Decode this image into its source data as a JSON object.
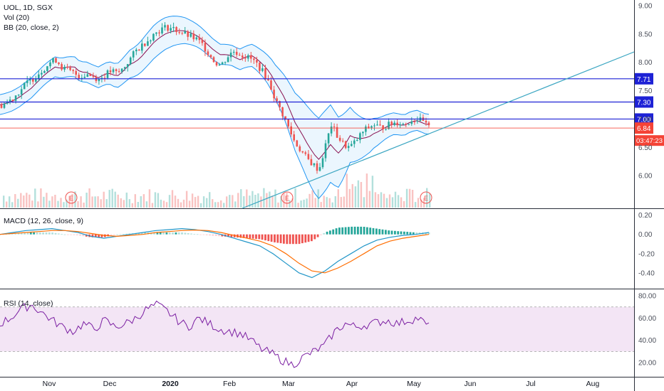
{
  "legend": {
    "symbol": "UOL, 1D, SGX",
    "volume": "Vol (20)",
    "bb": "BB (20, close, 2)",
    "macd": "MACD (12, 26, close, 9)",
    "rsi": "RSI (14, close)"
  },
  "colors": {
    "up": "#26a69a",
    "down": "#ef5350",
    "bb_band": "#2196f3",
    "bb_basis": "#880e4f",
    "bb_fill": "#e3f2fd",
    "hline": "#1e22d6",
    "price_line": "#f44336",
    "trend": "#3ba6c2",
    "macd_line": "#2196c8",
    "signal_line": "#ff6d00",
    "rsi_line": "#7b1fa2",
    "rsi_band": "#f3e5f5"
  },
  "chart_data": [
    {
      "type": "candlestick",
      "ylim": [
        5.55,
        9.05
      ],
      "yticks": [
        "9.00",
        "8.50",
        "8.00",
        "7.50",
        "7.00",
        "6.50",
        "6.00"
      ],
      "xlabels": [
        "Nov",
        "Dec",
        "2020",
        "Feb",
        "Mar",
        "Apr",
        "May",
        "Jun",
        "Jul",
        "Aug"
      ],
      "close_path": [
        7.25,
        7.3,
        7.38,
        7.5,
        7.62,
        7.7,
        7.8,
        7.9,
        8.0,
        8.05,
        7.9,
        7.85,
        7.8,
        7.75,
        7.8,
        7.75,
        7.7,
        7.78,
        7.85,
        7.8,
        7.9,
        8.05,
        8.2,
        8.3,
        8.4,
        8.5,
        8.58,
        8.62,
        8.6,
        8.55,
        8.5,
        8.45,
        8.4,
        8.3,
        8.15,
        8.0,
        7.95,
        8.1,
        8.2,
        8.15,
        8.1,
        8.05,
        7.95,
        7.8,
        7.6,
        7.3,
        7.1,
        6.85,
        6.6,
        6.45,
        6.3,
        6.2,
        6.1,
        6.5,
        6.9,
        6.7,
        6.55,
        6.5,
        6.6,
        6.75,
        6.85,
        6.9,
        6.85,
        6.88,
        6.92,
        6.95,
        6.9,
        6.98,
        7.0,
        6.95,
        6.84
      ],
      "horizontal_lines": [
        {
          "label": "7.71",
          "value": 7.71
        },
        {
          "label": "7.30",
          "value": 7.3
        },
        {
          "label": "7.00",
          "value": 7.0
        }
      ],
      "last_price": {
        "label": "6.84",
        "value": 6.84,
        "countdown": "03:47:23"
      },
      "earnings_markers": [
        "E",
        "E",
        "E"
      ]
    },
    {
      "type": "macd",
      "ylim": [
        -0.52,
        0.22
      ],
      "yticks": [
        "0.20",
        "0.00",
        "-0.20",
        "-0.40"
      ],
      "macd_path": [
        0.0,
        0.02,
        0.04,
        0.05,
        0.06,
        0.04,
        0.02,
        -0.02,
        -0.04,
        -0.02,
        0.0,
        0.02,
        0.04,
        0.05,
        0.06,
        0.05,
        0.03,
        0.0,
        -0.04,
        -0.08,
        -0.12,
        -0.2,
        -0.3,
        -0.4,
        -0.45,
        -0.38,
        -0.28,
        -0.2,
        -0.12,
        -0.06,
        -0.03,
        -0.01,
        0.0,
        0.02
      ],
      "signal_path": [
        0.0,
        0.01,
        0.02,
        0.03,
        0.04,
        0.04,
        0.03,
        0.01,
        -0.01,
        -0.02,
        -0.01,
        0.0,
        0.02,
        0.03,
        0.04,
        0.045,
        0.04,
        0.02,
        -0.01,
        -0.04,
        -0.07,
        -0.12,
        -0.2,
        -0.3,
        -0.38,
        -0.4,
        -0.35,
        -0.28,
        -0.2,
        -0.12,
        -0.07,
        -0.04,
        -0.02,
        0.0
      ]
    },
    {
      "type": "rsi",
      "ylim": [
        13,
        82
      ],
      "yticks": [
        "80.00",
        "60.00",
        "40.00",
        "20.00"
      ],
      "band": [
        30,
        70
      ],
      "rsi_path": [
        55,
        60,
        68,
        72,
        65,
        58,
        52,
        48,
        55,
        50,
        58,
        52,
        55,
        60,
        68,
        72,
        66,
        58,
        52,
        60,
        55,
        50,
        48,
        46,
        40,
        32,
        28,
        22,
        18,
        25,
        30,
        35,
        48,
        55,
        52,
        54,
        56,
        58,
        55,
        58,
        60,
        52
      ]
    }
  ]
}
